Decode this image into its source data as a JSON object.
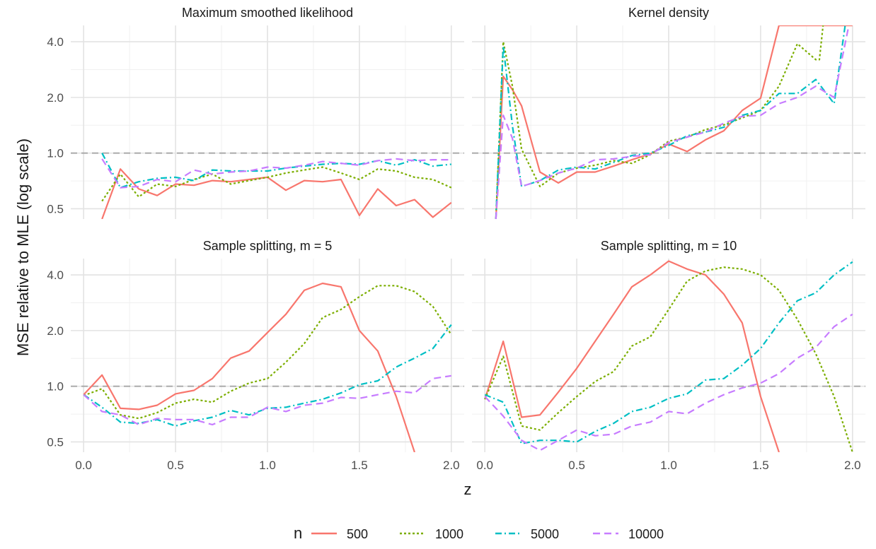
{
  "chart_data": {
    "type": "line",
    "xlabel": "z",
    "ylabel": "MSE relative to MLE (log scale)",
    "x_ticks": [
      "0.0",
      "0.5",
      "1.0",
      "1.5",
      "2.0"
    ],
    "y_ticks": [
      "0.5",
      "1.0",
      "2.0",
      "4.0"
    ],
    "y_scale": "log2",
    "xlim": [
      -0.07,
      2.07
    ],
    "ylim": [
      0.44,
      4.9
    ],
    "reference_line": 1.0,
    "grid": true,
    "legend": {
      "title": "n",
      "position": "bottom",
      "entries": [
        {
          "label": "500",
          "color": "#F8766D",
          "dash": "solid"
        },
        {
          "label": "1000",
          "color": "#7CAE00",
          "dash": "dotted"
        },
        {
          "label": "5000",
          "color": "#00BFC4",
          "dash": "dashdot"
        },
        {
          "label": "10000",
          "color": "#C77CFF",
          "dash": "longdash"
        }
      ]
    },
    "x": [
      0.0,
      0.1,
      0.2,
      0.3,
      0.4,
      0.5,
      0.6,
      0.7,
      0.8,
      0.9,
      1.0,
      1.1,
      1.2,
      1.3,
      1.4,
      1.5,
      1.6,
      1.7,
      1.8,
      1.9,
      2.0
    ],
    "panels": [
      {
        "title": "Maximum smoothed likelihood",
        "series": [
          {
            "name": "500",
            "x": [
              0.1,
              0.2,
              0.3,
              0.4,
              0.5,
              0.6,
              0.7,
              0.8,
              0.9,
              1.0,
              1.1,
              1.2,
              1.3,
              1.4,
              1.5,
              1.6,
              1.7,
              1.8,
              1.9,
              2.0
            ],
            "values": [
              0.43,
              0.82,
              0.64,
              0.59,
              0.68,
              0.67,
              0.71,
              0.7,
              0.72,
              0.74,
              0.63,
              0.71,
              0.7,
              0.72,
              0.46,
              0.64,
              0.52,
              0.56,
              0.45,
              0.54
            ]
          },
          {
            "name": "1000",
            "x": [
              0.1,
              0.2,
              0.3,
              0.4,
              0.5,
              0.6,
              0.7,
              0.8,
              0.9,
              1.0,
              1.1,
              1.2,
              1.3,
              1.4,
              1.5,
              1.6,
              1.7,
              1.8,
              1.9,
              2.0
            ],
            "values": [
              0.55,
              0.77,
              0.58,
              0.68,
              0.66,
              0.72,
              0.77,
              0.68,
              0.71,
              0.74,
              0.78,
              0.81,
              0.84,
              0.78,
              0.72,
              0.82,
              0.8,
              0.74,
              0.72,
              0.65
            ]
          },
          {
            "name": "5000",
            "x": [
              0.1,
              0.2,
              0.3,
              0.4,
              0.5,
              0.6,
              0.7,
              0.8,
              0.9,
              1.0,
              1.1,
              1.2,
              1.3,
              1.4,
              1.5,
              1.6,
              1.7,
              1.8,
              1.9,
              2.0
            ],
            "values": [
              1.0,
              0.65,
              0.7,
              0.73,
              0.74,
              0.71,
              0.81,
              0.8,
              0.8,
              0.8,
              0.83,
              0.85,
              0.87,
              0.88,
              0.87,
              0.91,
              0.86,
              0.92,
              0.85,
              0.87
            ]
          },
          {
            "name": "10000",
            "x": [
              0.1,
              0.2,
              0.3,
              0.4,
              0.5,
              0.6,
              0.7,
              0.8,
              0.9,
              1.0,
              1.1,
              1.2,
              1.3,
              1.4,
              1.5,
              1.6,
              1.7,
              1.8,
              1.9,
              2.0
            ],
            "values": [
              0.93,
              0.65,
              0.66,
              0.72,
              0.7,
              0.81,
              0.77,
              0.79,
              0.8,
              0.84,
              0.83,
              0.86,
              0.9,
              0.88,
              0.86,
              0.91,
              0.93,
              0.91,
              0.92,
              0.92
            ]
          }
        ]
      },
      {
        "title": "Kernel density",
        "series": [
          {
            "name": "500",
            "x": [
              0.06,
              0.1,
              0.15,
              0.2,
              0.3,
              0.4,
              0.5,
              0.6,
              0.7,
              0.8,
              0.9,
              1.0,
              1.1,
              1.2,
              1.3,
              1.4,
              1.5,
              1.6,
              1.7,
              1.8,
              1.9,
              2.0
            ],
            "values": [
              0.42,
              2.6,
              2.2,
              1.8,
              0.79,
              0.69,
              0.79,
              0.79,
              0.85,
              0.92,
              0.99,
              1.12,
              1.02,
              1.18,
              1.32,
              1.7,
              1.98,
              4.9,
              4.9,
              4.9,
              4.9,
              4.9
            ]
          },
          {
            "name": "1000",
            "x": [
              0.06,
              0.1,
              0.15,
              0.2,
              0.3,
              0.4,
              0.5,
              0.6,
              0.7,
              0.8,
              0.9,
              1.0,
              1.1,
              1.2,
              1.3,
              1.4,
              1.5,
              1.6,
              1.7,
              1.8,
              1.82,
              1.84
            ],
            "values": [
              0.42,
              4.0,
              2.3,
              1.05,
              0.66,
              0.78,
              0.83,
              0.86,
              0.91,
              0.88,
              0.98,
              1.16,
              1.22,
              1.34,
              1.42,
              1.55,
              1.7,
              2.3,
              3.9,
              3.2,
              3.2,
              4.9
            ]
          },
          {
            "name": "5000",
            "x": [
              0.06,
              0.1,
              0.15,
              0.2,
              0.3,
              0.4,
              0.5,
              0.6,
              0.7,
              0.8,
              0.9,
              1.0,
              1.1,
              1.2,
              1.3,
              1.4,
              1.5,
              1.6,
              1.7,
              1.8,
              1.9,
              1.96
            ],
            "values": [
              0.42,
              3.8,
              1.4,
              0.66,
              0.71,
              0.81,
              0.84,
              0.82,
              0.89,
              0.97,
              1.0,
              1.1,
              1.24,
              1.3,
              1.38,
              1.6,
              1.7,
              2.1,
              2.1,
              2.5,
              1.85,
              4.9
            ]
          },
          {
            "name": "10000",
            "x": [
              0.06,
              0.1,
              0.15,
              0.2,
              0.3,
              0.4,
              0.5,
              0.6,
              0.7,
              0.8,
              0.9,
              1.0,
              1.1,
              1.2,
              1.3,
              1.4,
              1.5,
              1.6,
              1.7,
              1.8,
              1.9,
              1.98
            ],
            "values": [
              0.42,
              1.6,
              1.2,
              0.66,
              0.71,
              0.78,
              0.83,
              0.92,
              0.93,
              0.96,
              0.98,
              1.14,
              1.22,
              1.3,
              1.45,
              1.58,
              1.6,
              1.85,
              2.0,
              2.3,
              2.0,
              4.9
            ]
          }
        ]
      },
      {
        "title": "Sample splitting, m = 5",
        "series": [
          {
            "name": "500",
            "x": [
              0.0,
              0.1,
              0.2,
              0.3,
              0.4,
              0.5,
              0.6,
              0.7,
              0.8,
              0.9,
              1.0,
              1.1,
              1.2,
              1.3,
              1.4,
              1.5,
              1.6,
              1.7,
              1.8
            ],
            "values": [
              0.9,
              1.15,
              0.76,
              0.75,
              0.79,
              0.91,
              0.95,
              1.1,
              1.42,
              1.55,
              1.95,
              2.45,
              3.3,
              3.6,
              3.45,
              2.0,
              1.55,
              0.88,
              0.44
            ]
          },
          {
            "name": "1000",
            "x": [
              0.0,
              0.1,
              0.2,
              0.3,
              0.4,
              0.5,
              0.6,
              0.7,
              0.8,
              0.9,
              1.0,
              1.1,
              1.2,
              1.3,
              1.4,
              1.5,
              1.6,
              1.7,
              1.8,
              1.9,
              2.0
            ],
            "values": [
              0.89,
              0.97,
              0.7,
              0.67,
              0.72,
              0.81,
              0.85,
              0.82,
              0.94,
              1.04,
              1.1,
              1.35,
              1.7,
              2.35,
              2.6,
              3.05,
              3.5,
              3.5,
              3.25,
              2.7,
              1.9
            ]
          },
          {
            "name": "5000",
            "x": [
              0.0,
              0.1,
              0.2,
              0.3,
              0.4,
              0.5,
              0.6,
              0.7,
              0.8,
              0.9,
              1.0,
              1.1,
              1.2,
              1.3,
              1.4,
              1.5,
              1.6,
              1.7,
              1.8,
              1.9,
              2.0
            ],
            "values": [
              0.9,
              0.77,
              0.64,
              0.63,
              0.66,
              0.61,
              0.65,
              0.68,
              0.74,
              0.7,
              0.76,
              0.77,
              0.81,
              0.85,
              0.92,
              1.02,
              1.07,
              1.27,
              1.42,
              1.6,
              2.15
            ]
          },
          {
            "name": "10000",
            "x": [
              0.0,
              0.1,
              0.2,
              0.3,
              0.4,
              0.5,
              0.6,
              0.7,
              0.8,
              0.9,
              1.0,
              1.1,
              1.2,
              1.3,
              1.4,
              1.5,
              1.6,
              1.7,
              1.8,
              1.9,
              2.0
            ],
            "values": [
              0.9,
              0.73,
              0.7,
              0.62,
              0.67,
              0.66,
              0.66,
              0.62,
              0.68,
              0.68,
              0.77,
              0.73,
              0.79,
              0.81,
              0.87,
              0.86,
              0.9,
              0.94,
              0.92,
              1.1,
              1.14
            ]
          }
        ]
      },
      {
        "title": "Sample splitting, m = 10",
        "series": [
          {
            "name": "500",
            "x": [
              0.0,
              0.1,
              0.2,
              0.3,
              0.4,
              0.5,
              0.6,
              0.7,
              0.8,
              0.9,
              1.0,
              1.1,
              1.2,
              1.3,
              1.4,
              1.5,
              1.6
            ],
            "values": [
              0.85,
              1.75,
              0.68,
              0.7,
              0.93,
              1.25,
              1.75,
              2.45,
              3.45,
              4.0,
              4.75,
              4.3,
              4.0,
              3.15,
              2.2,
              0.88,
              0.44
            ]
          },
          {
            "name": "1000",
            "x": [
              0.0,
              0.1,
              0.2,
              0.3,
              0.4,
              0.5,
              0.6,
              0.7,
              0.8,
              0.9,
              1.0,
              1.1,
              1.2,
              1.3,
              1.4,
              1.5,
              1.6,
              1.7,
              1.8,
              1.9,
              2.0
            ],
            "values": [
              0.85,
              1.45,
              0.61,
              0.58,
              0.72,
              0.88,
              1.06,
              1.2,
              1.65,
              1.85,
              2.6,
              3.7,
              4.2,
              4.4,
              4.3,
              4.0,
              3.3,
              2.3,
              1.5,
              0.88,
              0.44
            ]
          },
          {
            "name": "5000",
            "x": [
              0.0,
              0.1,
              0.2,
              0.3,
              0.4,
              0.5,
              0.6,
              0.7,
              0.8,
              0.9,
              1.0,
              1.1,
              1.2,
              1.3,
              1.4,
              1.5,
              1.6,
              1.7,
              1.8,
              1.9,
              2.0
            ],
            "values": [
              0.9,
              0.82,
              0.49,
              0.51,
              0.51,
              0.5,
              0.57,
              0.63,
              0.73,
              0.77,
              0.86,
              0.91,
              1.08,
              1.1,
              1.3,
              1.6,
              2.2,
              2.9,
              3.2,
              4.0,
              4.7
            ]
          },
          {
            "name": "10000",
            "x": [
              0.0,
              0.1,
              0.2,
              0.3,
              0.4,
              0.5,
              0.6,
              0.7,
              0.8,
              0.9,
              1.0,
              1.1,
              1.2,
              1.3,
              1.4,
              1.5,
              1.6,
              1.7,
              1.8,
              1.9,
              2.0
            ],
            "values": [
              0.88,
              0.69,
              0.51,
              0.45,
              0.51,
              0.58,
              0.54,
              0.55,
              0.61,
              0.64,
              0.73,
              0.71,
              0.81,
              0.9,
              0.98,
              1.04,
              1.17,
              1.42,
              1.62,
              2.1,
              2.45
            ]
          }
        ]
      }
    ]
  }
}
